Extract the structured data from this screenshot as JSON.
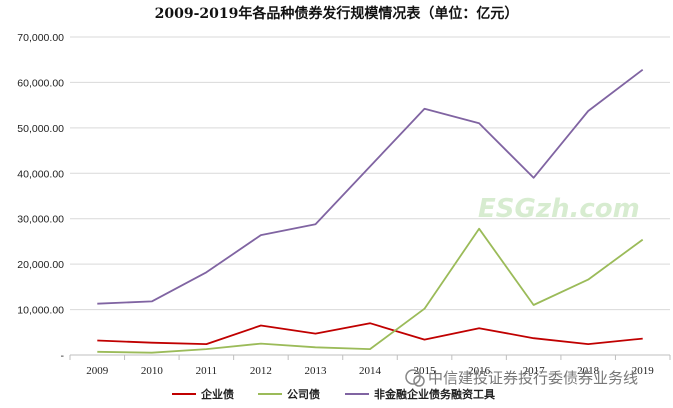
{
  "chart_data": {
    "type": "line",
    "title": "2009-2019年各品种债券发行规模情况表（单位：亿元）",
    "xlabel": "",
    "ylabel": "",
    "categories": [
      "2009",
      "2010",
      "2011",
      "2012",
      "2013",
      "2014",
      "2015",
      "2016",
      "2017",
      "2018",
      "2019"
    ],
    "ylim": [
      0,
      70000
    ],
    "y_ticks": [
      0,
      10000,
      20000,
      30000,
      40000,
      50000,
      60000,
      70000
    ],
    "y_tick_labels": [
      "-",
      "10,000.00",
      "20,000.00",
      "30,000.00",
      "40,000.00",
      "50,000.00",
      "60,000.00",
      "70,000.00"
    ],
    "grid": "horizontal",
    "legend_position": "bottom",
    "series": [
      {
        "name": "企业债",
        "color": "#c00000",
        "values": [
          3200,
          2700,
          2400,
          6500,
          4700,
          7000,
          3400,
          5900,
          3700,
          2400,
          3600
        ]
      },
      {
        "name": "公司债",
        "color": "#9bbb59",
        "values": [
          700,
          500,
          1300,
          2500,
          1700,
          1300,
          10200,
          27800,
          11000,
          16600,
          25400
        ]
      },
      {
        "name": "非金融企业债务融资工具",
        "color": "#8064a2",
        "values": [
          11300,
          11800,
          18200,
          26400,
          28800,
          41500,
          54200,
          51000,
          39000,
          53700,
          62800
        ]
      }
    ]
  },
  "watermarks": {
    "site": "ESGzh.com",
    "wechat": "中信建投证券投行委债券业务线"
  }
}
